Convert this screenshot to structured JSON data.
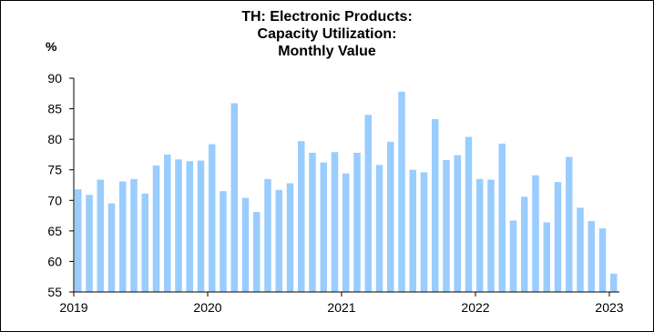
{
  "chart_data": {
    "type": "bar",
    "title_lines": [
      "TH: Electronic Products:",
      "Capacity Utilization:",
      "Monthly Value"
    ],
    "ylabel": "%",
    "ylim": [
      55,
      90
    ],
    "yticks": [
      55,
      60,
      65,
      70,
      75,
      80,
      85,
      90
    ],
    "xticks": [
      "2019",
      "2020",
      "2021",
      "2022",
      "2023"
    ],
    "grid": false,
    "bar_color": "#99ccff",
    "series": [
      {
        "values": [
          71.8,
          70.9,
          73.4,
          69.5,
          73.1,
          73.5,
          71.1,
          75.7,
          77.5,
          76.7,
          76.4,
          76.5,
          79.2,
          71.5,
          85.9,
          70.4,
          68.1,
          73.5,
          71.7,
          72.8,
          79.7,
          77.8,
          76.2,
          77.9,
          74.4,
          77.8,
          84.0,
          75.8,
          79.6,
          87.8,
          75.0,
          74.6,
          83.3,
          76.6,
          77.4,
          80.4,
          73.5,
          73.4,
          79.3,
          66.7,
          70.6,
          74.1,
          66.4,
          73.0,
          77.1,
          68.8,
          66.6,
          65.4,
          58.0
        ]
      }
    ]
  }
}
